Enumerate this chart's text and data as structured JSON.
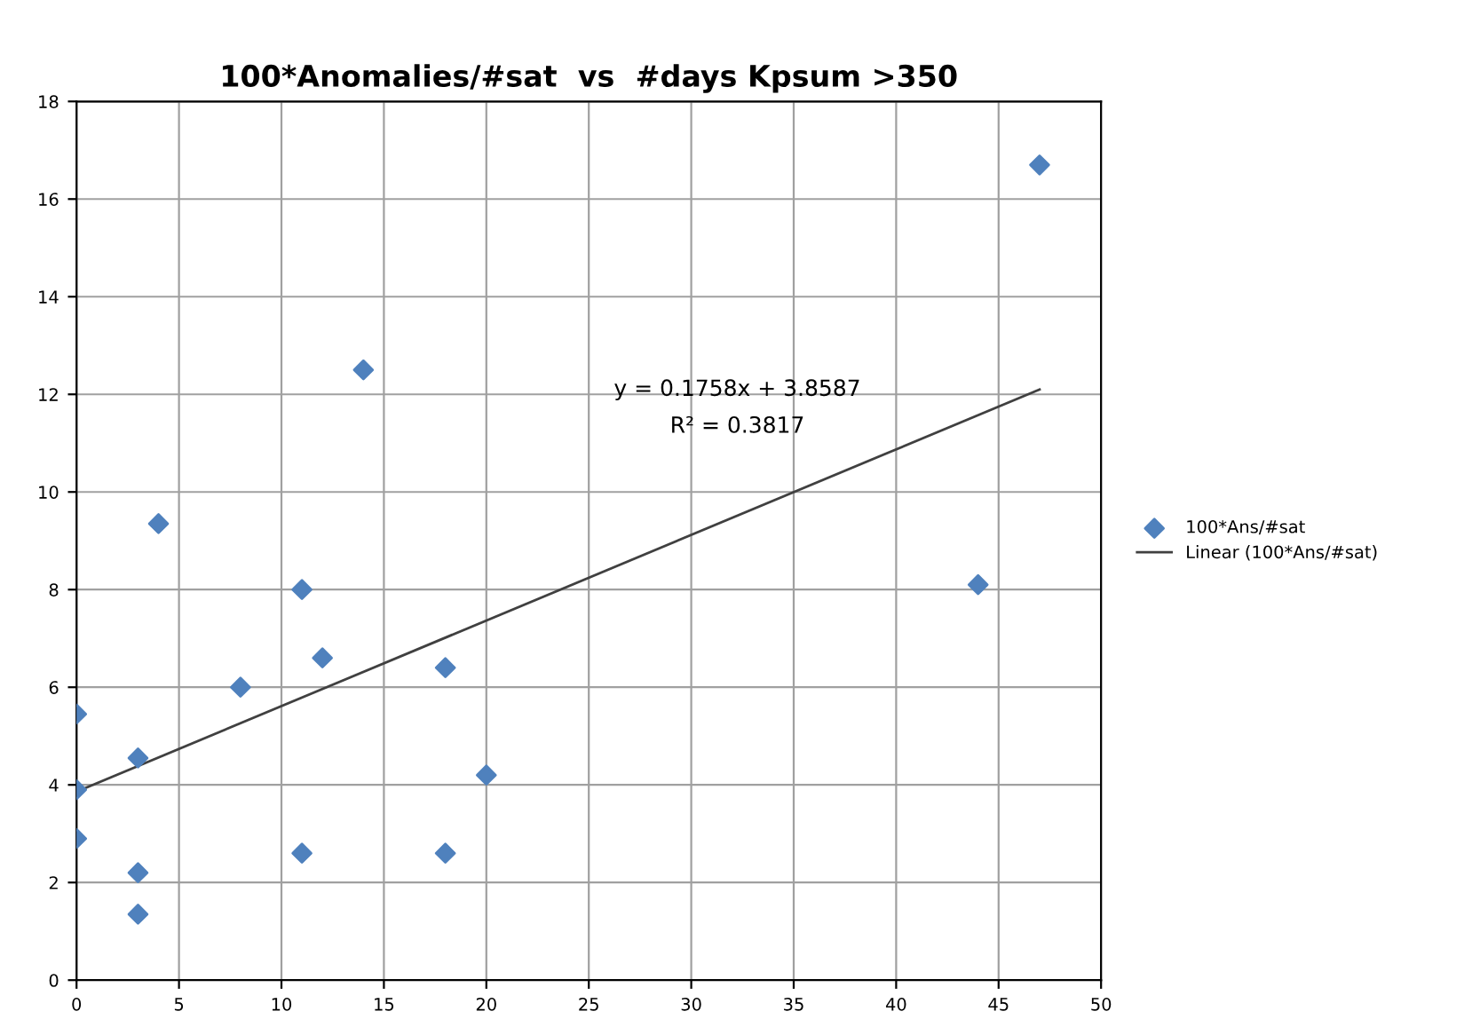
{
  "chart_data": {
    "type": "scatter",
    "title": "100*Anomalies/#sat  vs  #days Kpsum >350",
    "xlim": [
      0,
      50
    ],
    "xticks": [
      0,
      5,
      10,
      15,
      20,
      25,
      30,
      35,
      40,
      45,
      50
    ],
    "ylim": [
      0,
      18
    ],
    "yticks": [
      0,
      2,
      4,
      6,
      8,
      10,
      12,
      14,
      16,
      18
    ],
    "grid": true,
    "legend": "right",
    "series": [
      {
        "name": "100*Ans/#sat",
        "color": "#4f81bd",
        "marker": "diamond",
        "x": [
          0,
          0,
          0,
          3,
          3,
          3,
          4,
          8,
          11,
          11,
          12,
          14,
          18,
          18,
          20,
          44,
          47
        ],
        "values": [
          5.45,
          3.9,
          2.9,
          4.55,
          2.2,
          1.35,
          9.35,
          6.0,
          8.0,
          2.6,
          6.6,
          12.5,
          6.4,
          2.6,
          4.2,
          8.1,
          16.7
        ]
      },
      {
        "name": "Linear (100*Ans/#sat)",
        "color": "#404040",
        "type": "line",
        "x": [
          0,
          47
        ],
        "values": [
          3.86,
          12.1
        ]
      }
    ],
    "annotations": [
      "y = 0.1758x + 3.8587",
      "R² = 0.3817"
    ]
  }
}
